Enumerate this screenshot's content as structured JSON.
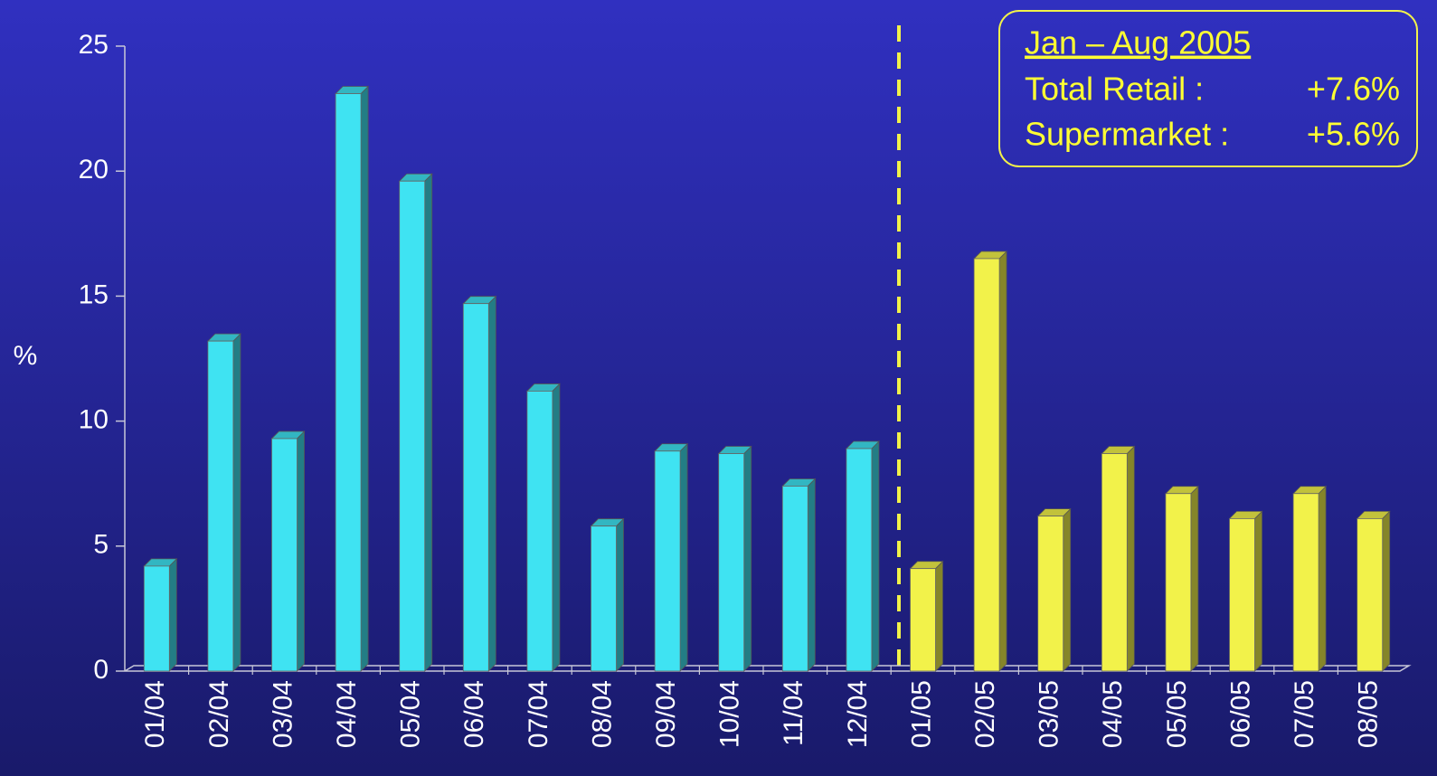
{
  "chart_data": {
    "type": "bar",
    "y_label": "%",
    "categories": [
      "01/04",
      "02/04",
      "03/04",
      "04/04",
      "05/04",
      "06/04",
      "07/04",
      "08/04",
      "09/04",
      "10/04",
      "11/04",
      "12/04",
      "01/05",
      "02/05",
      "03/05",
      "04/05",
      "05/05",
      "06/05",
      "07/05",
      "08/05"
    ],
    "values": [
      4.2,
      13.2,
      9.3,
      23.1,
      19.6,
      14.7,
      11.2,
      5.8,
      8.8,
      8.7,
      7.4,
      8.9,
      4.1,
      16.5,
      6.2,
      8.7,
      7.1,
      6.1,
      7.1,
      6.1
    ],
    "colors": [
      "#3fe3f2",
      "#3fe3f2",
      "#3fe3f2",
      "#3fe3f2",
      "#3fe3f2",
      "#3fe3f2",
      "#3fe3f2",
      "#3fe3f2",
      "#3fe3f2",
      "#3fe3f2",
      "#3fe3f2",
      "#3fe3f2",
      "#f2f24a",
      "#f2f24a",
      "#f2f24a",
      "#f2f24a",
      "#f2f24a",
      "#f2f24a",
      "#f2f24a",
      "#f2f24a"
    ],
    "ylim": [
      0,
      25
    ],
    "yticks": [
      0,
      5,
      10,
      15,
      20,
      25
    ],
    "grid": false,
    "annotation": {
      "title": "Jan – Aug 2005",
      "rows": [
        [
          "Total Retail :",
          "+7.6%"
        ],
        [
          "Supermarket :",
          "+5.6%"
        ]
      ]
    }
  }
}
